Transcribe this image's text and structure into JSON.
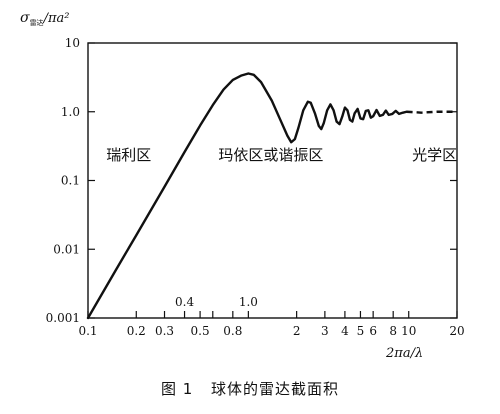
{
  "chart_data": {
    "type": "line",
    "xscale": "log",
    "yscale": "log",
    "xlim": [
      0.1,
      20
    ],
    "ylim": [
      0.001,
      10
    ],
    "ylabel_symbol": "σ",
    "ylabel_sub": "雷达",
    "ylabel_rest": "/πa²",
    "xlabel": "2πa/λ",
    "y_ticks": [
      {
        "value": 10,
        "label": "10"
      },
      {
        "value": 1,
        "label": "1.0"
      },
      {
        "value": 0.1,
        "label": "0.1"
      },
      {
        "value": 0.01,
        "label": "0.01"
      },
      {
        "value": 0.001,
        "label": "0.001"
      }
    ],
    "x_ticks": [
      {
        "value": 0.1,
        "label": "0.1"
      },
      {
        "value": 0.2,
        "label": "0.2"
      },
      {
        "value": 0.3,
        "label": "0.3"
      },
      {
        "value": 0.4,
        "label": ""
      },
      {
        "value": 0.5,
        "label": "0.5"
      },
      {
        "value": 0.6,
        "label": ""
      },
      {
        "value": 0.8,
        "label": "0.8"
      },
      {
        "value": 1,
        "label": ""
      },
      {
        "value": 2,
        "label": "2"
      },
      {
        "value": 3,
        "label": "3"
      },
      {
        "value": 4,
        "label": "4"
      },
      {
        "value": 5,
        "label": "5"
      },
      {
        "value": 6,
        "label": "6"
      },
      {
        "value": 8,
        "label": "8"
      },
      {
        "value": 10,
        "label": "10"
      },
      {
        "value": 20,
        "label": "20"
      }
    ],
    "inner_labels": [
      {
        "value": 0.4,
        "label": "0.4"
      },
      {
        "value": 1.0,
        "label": "1.0"
      }
    ],
    "regions": [
      {
        "label": "瑞利区",
        "x": 0.13,
        "y": 0.2
      },
      {
        "label": "玛依区或谐振区",
        "x": 0.65,
        "y": 0.2
      },
      {
        "label": "光学区",
        "x": 10.5,
        "y": 0.2
      }
    ],
    "curve_solid": [
      [
        0.1,
        0.001
      ],
      [
        0.15,
        0.0051
      ],
      [
        0.2,
        0.016
      ],
      [
        0.3,
        0.081
      ],
      [
        0.4,
        0.26
      ],
      [
        0.5,
        0.63
      ],
      [
        0.6,
        1.25
      ],
      [
        0.7,
        2.1
      ],
      [
        0.8,
        2.9
      ],
      [
        0.9,
        3.35
      ],
      [
        1.0,
        3.6
      ],
      [
        1.08,
        3.45
      ],
      [
        1.2,
        2.7
      ],
      [
        1.4,
        1.45
      ],
      [
        1.6,
        0.72
      ],
      [
        1.75,
        0.45
      ],
      [
        1.85,
        0.36
      ],
      [
        1.95,
        0.4
      ],
      [
        2.05,
        0.58
      ],
      [
        2.2,
        1.05
      ],
      [
        2.35,
        1.4
      ],
      [
        2.45,
        1.35
      ],
      [
        2.6,
        0.95
      ],
      [
        2.75,
        0.62
      ],
      [
        2.85,
        0.56
      ],
      [
        2.95,
        0.68
      ],
      [
        3.1,
        1.05
      ],
      [
        3.25,
        1.28
      ],
      [
        3.4,
        1.05
      ],
      [
        3.55,
        0.72
      ],
      [
        3.7,
        0.66
      ],
      [
        3.85,
        0.85
      ],
      [
        4.0,
        1.15
      ],
      [
        4.15,
        1.05
      ],
      [
        4.3,
        0.76
      ],
      [
        4.45,
        0.72
      ],
      [
        4.6,
        0.95
      ],
      [
        4.8,
        1.1
      ],
      [
        5.0,
        0.8
      ],
      [
        5.2,
        0.78
      ],
      [
        5.4,
        1.03
      ],
      [
        5.6,
        1.05
      ],
      [
        5.8,
        0.82
      ],
      [
        6.0,
        0.86
      ],
      [
        6.3,
        1.06
      ],
      [
        6.6,
        0.87
      ],
      [
        6.9,
        0.9
      ],
      [
        7.2,
        1.04
      ],
      [
        7.5,
        0.9
      ],
      [
        7.9,
        0.93
      ],
      [
        8.3,
        1.03
      ],
      [
        8.7,
        0.93
      ],
      [
        9.2,
        0.97
      ],
      [
        9.7,
        1.0
      ]
    ],
    "curve_dashed": [
      [
        9.7,
        1.0
      ],
      [
        12,
        0.97
      ],
      [
        15,
        1.0
      ],
      [
        20,
        1.0
      ]
    ]
  },
  "caption": {
    "figure_label": "图 1",
    "title": "球体的雷达截面积"
  }
}
